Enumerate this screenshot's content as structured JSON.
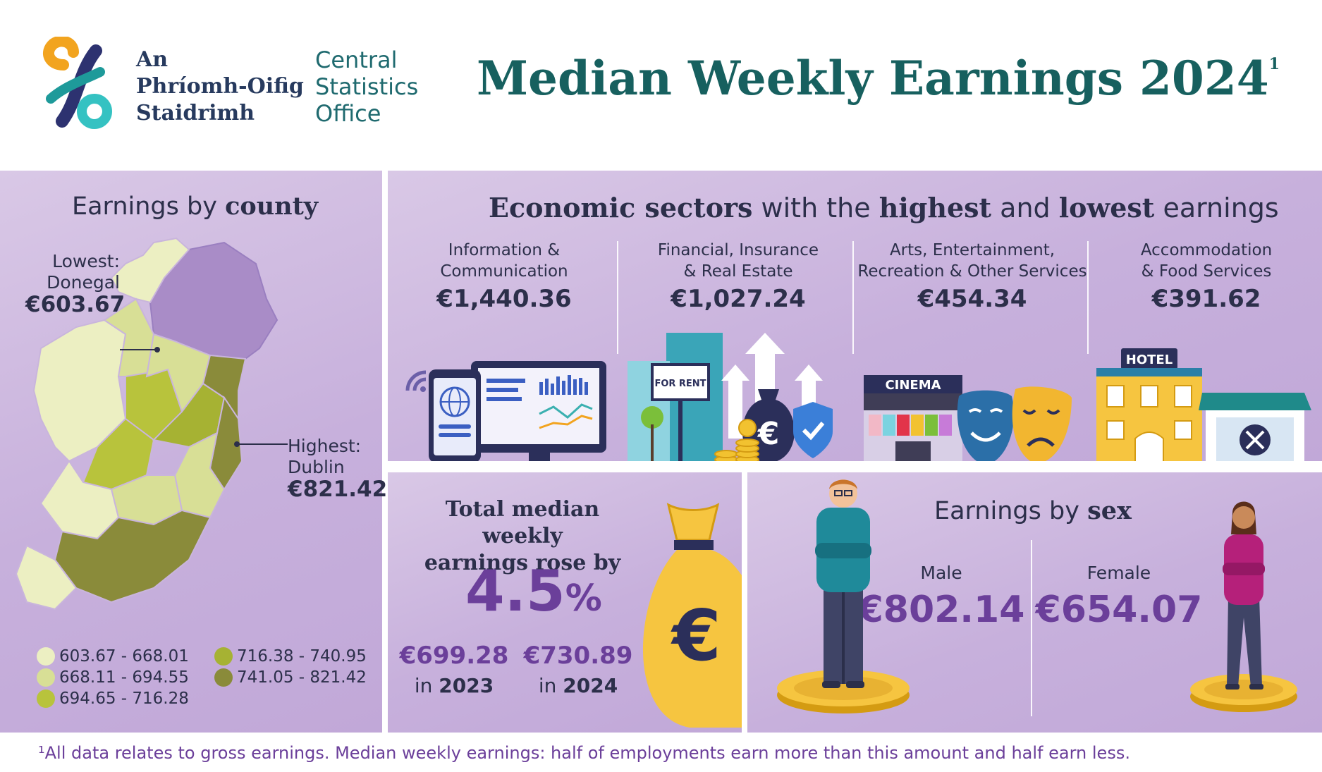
{
  "header": {
    "logo_irish": [
      "An",
      "Phríomh-Oifig",
      "Staidrimh"
    ],
    "logo_english": [
      "Central",
      "Statistics",
      "Office"
    ],
    "title": "Median Weekly Earnings 2024",
    "title_footnote_mark": "1"
  },
  "county": {
    "title_prefix": "Earnings by ",
    "title_bold": "county",
    "lowest_label_1": "Lowest:",
    "lowest_label_2": "Donegal",
    "lowest_value": "€603.67",
    "highest_label_1": "Highest:",
    "highest_label_2": "Dublin",
    "highest_value": "€821.42",
    "legend": [
      {
        "label": "603.67 - 668.01",
        "color": "#ecefc2"
      },
      {
        "label": "668.11 - 694.55",
        "color": "#d8df96"
      },
      {
        "label": "694.65 - 716.28",
        "color": "#b8c33c"
      },
      {
        "label": "716.38 - 740.95",
        "color": "#a6b233"
      },
      {
        "label": "741.05 - 821.42",
        "color": "#8a8b3a"
      }
    ]
  },
  "sectors": {
    "title_parts": [
      "Economic sectors",
      " with the ",
      "highest",
      " and ",
      "lowest",
      " earnings"
    ],
    "items": [
      {
        "name_1": "Information &",
        "name_2": "Communication",
        "value": "€1,440.36"
      },
      {
        "name_1": "Financial, Insurance",
        "name_2": "& Real Estate",
        "value": "€1,027.24"
      },
      {
        "name_1": "Arts, Entertainment,",
        "name_2": "Recreation & Other Services",
        "value": "€454.34"
      },
      {
        "name_1": "Accommodation",
        "name_2": "& Food Services",
        "value": "€391.62"
      }
    ],
    "sign_for_rent": "FOR RENT",
    "sign_cinema": "CINEMA",
    "sign_hotel": "HOTEL"
  },
  "total": {
    "title_1": "Total median weekly",
    "title_2": "earnings rose by",
    "percent_number": "4.5",
    "percent_sign": "%",
    "y2023_value": "€699.28",
    "y2023_prefix": "in ",
    "y2023_year": "2023",
    "y2024_value": "€730.89",
    "y2024_prefix": "in ",
    "y2024_year": "2024"
  },
  "sex": {
    "title_prefix": "Earnings by ",
    "title_bold": "sex",
    "male_label": "Male",
    "male_value": "€802.14",
    "female_label": "Female",
    "female_value": "€654.07"
  },
  "footnote": "¹All data relates to gross earnings. Median weekly earnings: half of employments earn more than this amount and half earn less.",
  "colors": {
    "title_teal": "#17605f",
    "accent_purple": "#6b3f9a",
    "panel_lilac": "#c7b0dc",
    "text_navy": "#2c2f4a"
  }
}
